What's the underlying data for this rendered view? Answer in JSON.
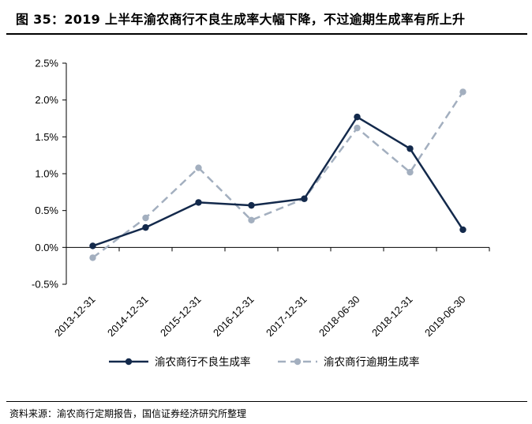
{
  "header": {
    "title": "图 35：2019 上半年渝农商行不良生成率大幅下降，不过逾期生成率有所上升"
  },
  "footer": {
    "source": "资料来源：渝农商行定期报告，国信证券经济研究所整理"
  },
  "chart_data": {
    "type": "line",
    "title": "",
    "xlabel": "",
    "ylabel": "",
    "categories": [
      "2013-12-31",
      "2014-12-31",
      "2015-12-31",
      "2016-12-31",
      "2017-12-31",
      "2018-06-30",
      "2018-12-31",
      "2019-06-30"
    ],
    "ylim": [
      -0.5,
      2.5
    ],
    "yticks": [
      "-0.5%",
      "0.0%",
      "0.5%",
      "1.0%",
      "1.5%",
      "2.0%",
      "2.5%"
    ],
    "grid": false,
    "legend": "bottom",
    "series": [
      {
        "name": "渝农商行不良生成率",
        "values": [
          0.02,
          0.27,
          0.61,
          0.57,
          0.66,
          1.77,
          1.34,
          0.24
        ],
        "color": "#13294b",
        "style": "solid"
      },
      {
        "name": "渝农商行逾期生成率",
        "values": [
          -0.14,
          0.4,
          1.08,
          0.37,
          0.66,
          1.62,
          1.02,
          2.11
        ],
        "color": "#a3afbf",
        "style": "dashed"
      }
    ]
  }
}
